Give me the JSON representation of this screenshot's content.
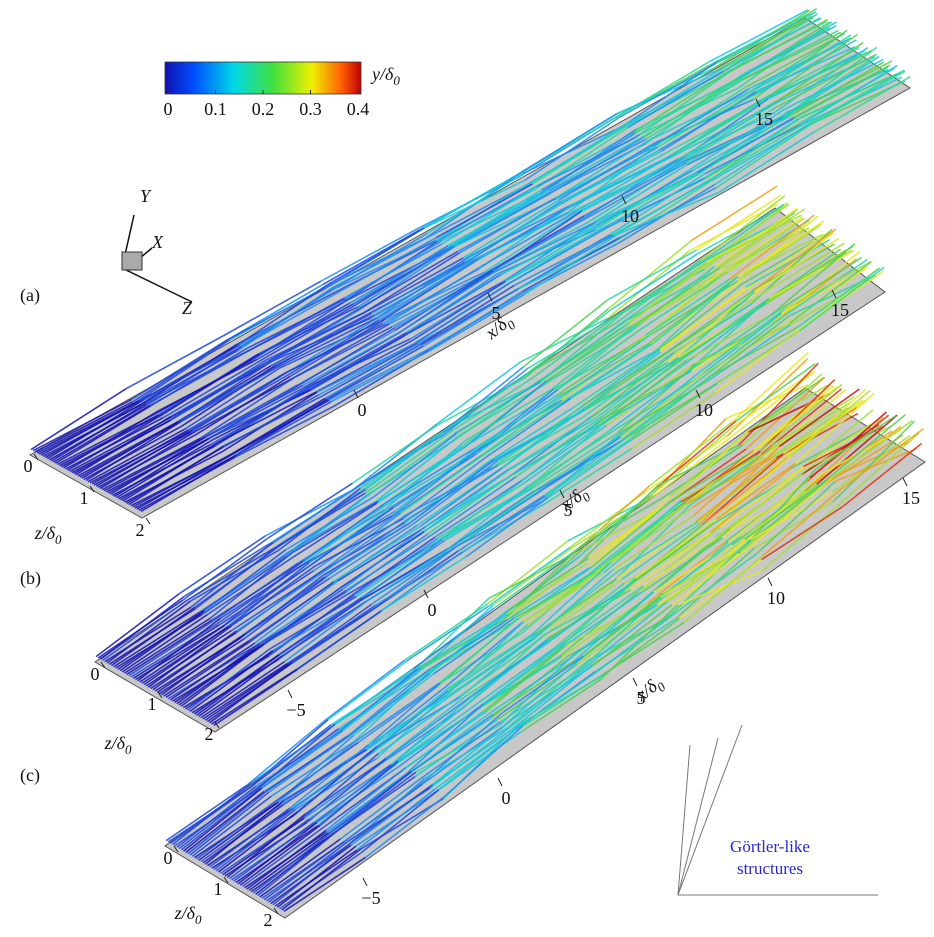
{
  "colorbar": {
    "label": {
      "text": "y/δ",
      "sub": "0"
    },
    "range": [
      0,
      0.4
    ],
    "ticks": [
      0,
      0.1,
      0.2,
      0.3,
      0.4
    ]
  },
  "triad": {
    "y": "Y",
    "x": "X",
    "z": "Z"
  },
  "panels": [
    {
      "label": "(a)",
      "x_ticks": [
        0,
        5,
        10,
        15
      ],
      "x_label": {
        "text": "x/δ",
        "sub": "0"
      },
      "z_ticks": [
        0,
        1,
        2
      ],
      "z_label": {
        "text": "z/δ",
        "sub": "0"
      }
    },
    {
      "label": "(b)",
      "x_ticks": [
        {
          "value": -5,
          "label": "−5"
        },
        0,
        5,
        10,
        15
      ],
      "x_label": {
        "text": "x/δ",
        "sub": "0"
      },
      "z_ticks": [
        0,
        1,
        2
      ],
      "z_label": {
        "text": "z/δ",
        "sub": "0"
      }
    },
    {
      "label": "(c)",
      "x_ticks": [
        {
          "value": -5,
          "label": "−5"
        },
        0,
        5,
        10,
        15
      ],
      "x_label": {
        "text": "x/δ",
        "sub": "0"
      },
      "z_ticks": [
        0,
        1,
        2
      ],
      "z_label": {
        "text": "z/δ",
        "sub": "0"
      }
    }
  ],
  "annotation": [
    "Görtler-like",
    "structures"
  ]
}
